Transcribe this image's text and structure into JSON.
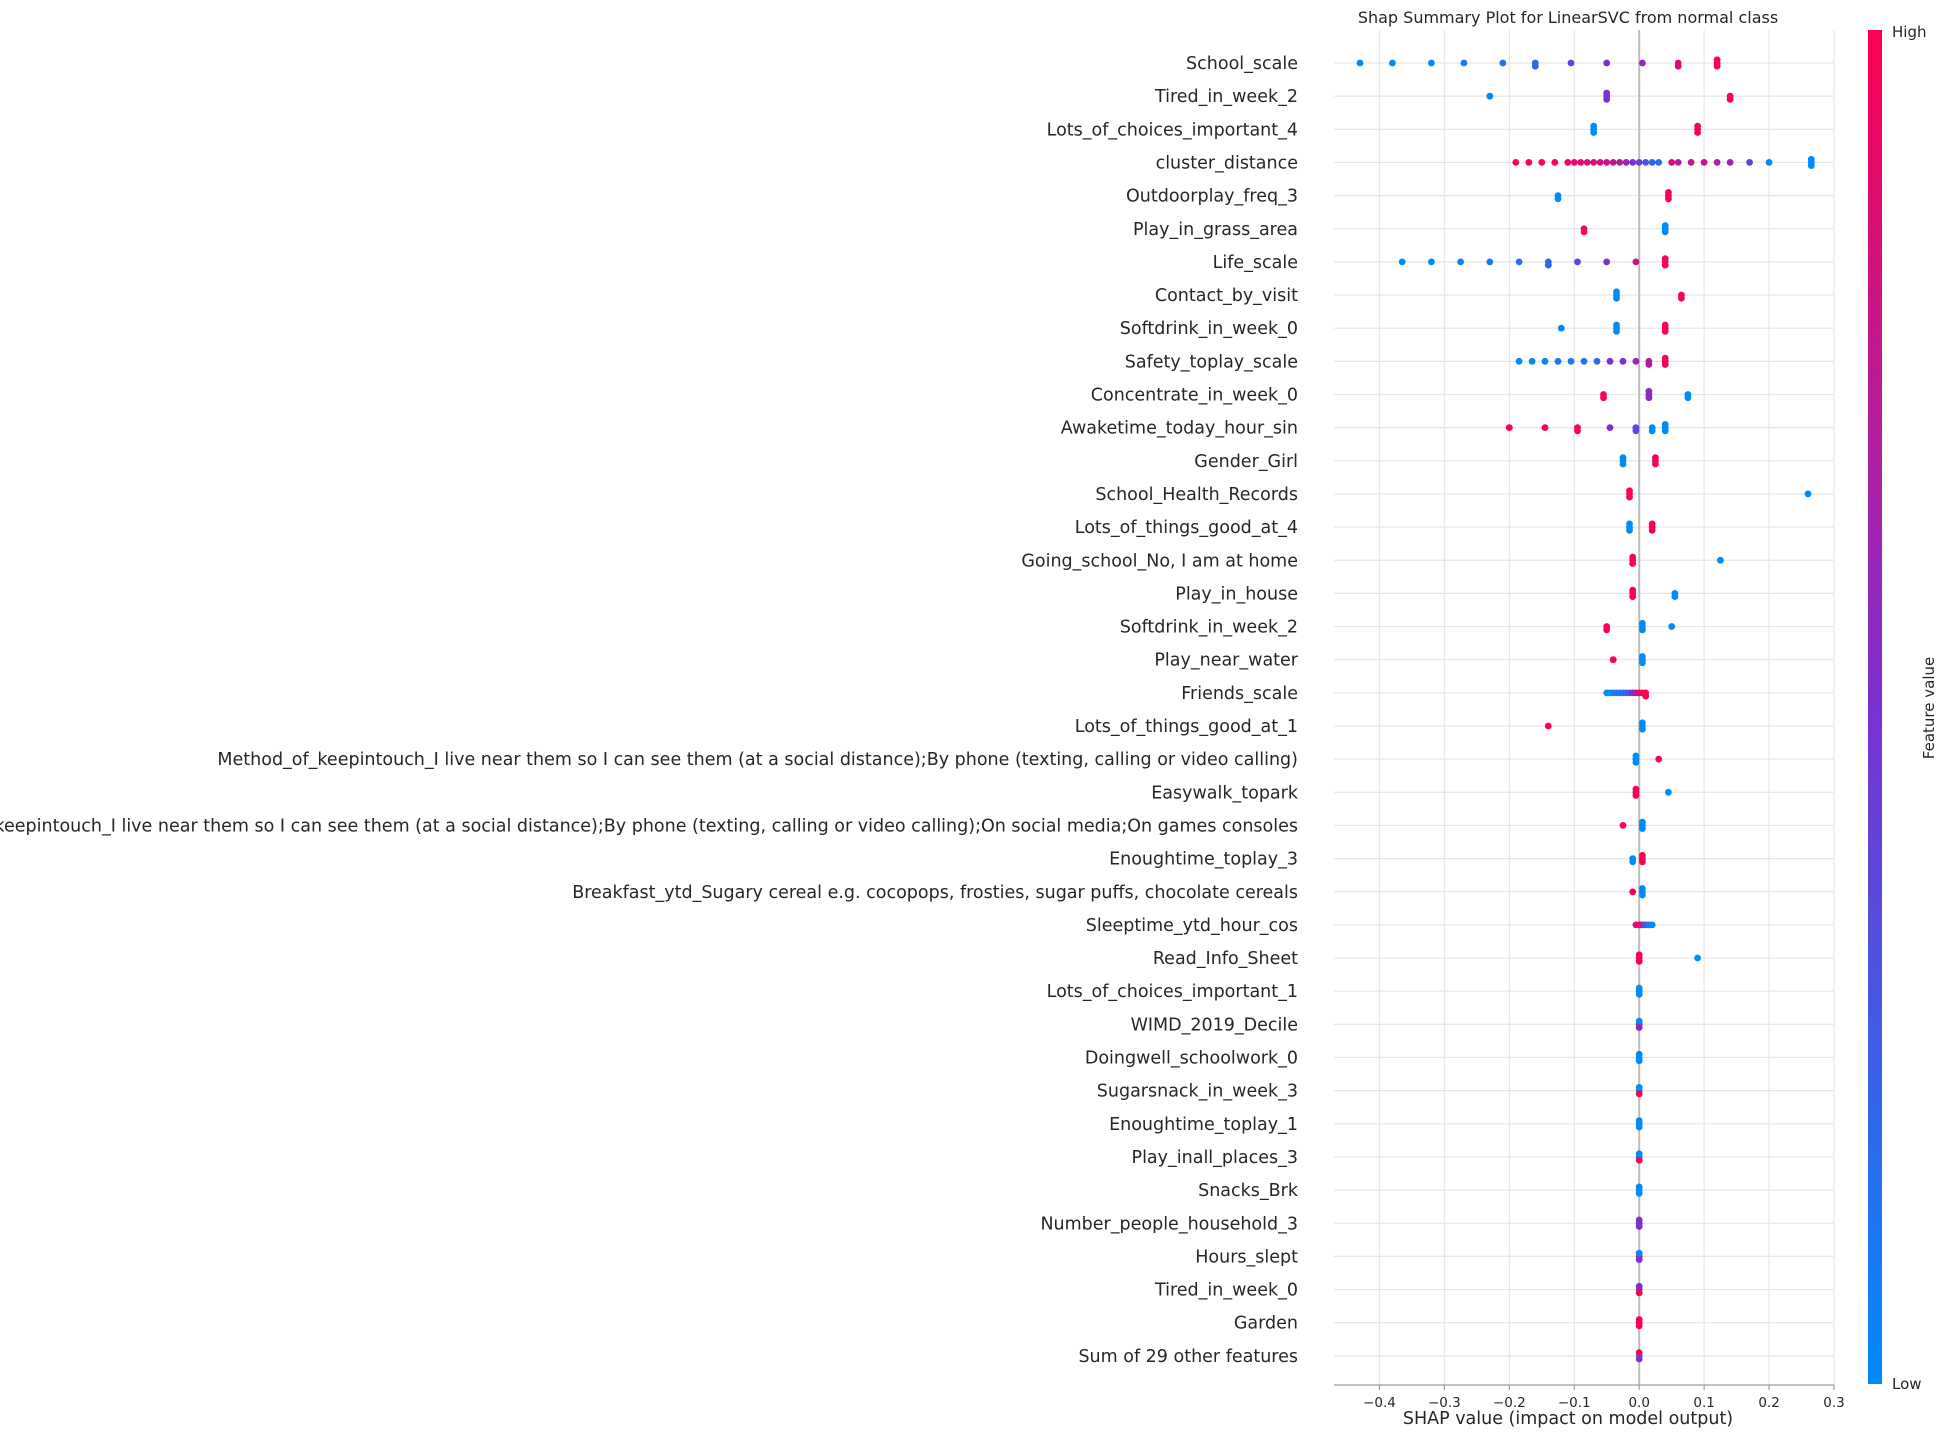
{
  "chart_data": {
    "type": "scatter",
    "title": "Shap Summary Plot for LinearSVC from normal class",
    "xlabel": "SHAP value (impact on model output)",
    "xlim": [
      -0.47,
      0.3
    ],
    "xticks": [
      -0.4,
      -0.3,
      -0.2,
      -0.1,
      0.0,
      0.1,
      0.2,
      0.3
    ],
    "xtick_labels": [
      "−0.4",
      "−0.3",
      "−0.2",
      "−0.1",
      "0.0",
      "0.1",
      "0.2",
      "0.3"
    ],
    "grid": true,
    "colorbar": {
      "label": "Feature value",
      "high": "High",
      "low": "Low",
      "low_color": "#008bfb",
      "high_color": "#ff0051"
    },
    "features": [
      {
        "name": "School_scale",
        "points": [
          [
            -0.43,
            0.0
          ],
          [
            -0.38,
            0.0
          ],
          [
            -0.32,
            0.0
          ],
          [
            -0.27,
            0.1
          ],
          [
            -0.21,
            0.15
          ],
          [
            -0.16,
            0.2
          ],
          [
            -0.16,
            0.2
          ],
          [
            -0.105,
            0.4
          ],
          [
            -0.05,
            0.5
          ],
          [
            0.005,
            0.6
          ],
          [
            0.06,
            0.85
          ],
          [
            0.06,
            0.85
          ],
          [
            0.12,
            1.0
          ],
          [
            0.12,
            1.0
          ],
          [
            0.12,
            1.0
          ]
        ]
      },
      {
        "name": "Tired_in_week_2",
        "points": [
          [
            -0.23,
            0.0
          ],
          [
            -0.05,
            0.5
          ],
          [
            -0.05,
            0.5
          ],
          [
            -0.05,
            0.5
          ],
          [
            0.14,
            1.0
          ],
          [
            0.14,
            1.0
          ]
        ]
      },
      {
        "name": "Lots_of_choices_important_4",
        "points": [
          [
            -0.07,
            0.0
          ],
          [
            -0.07,
            0.0
          ],
          [
            -0.07,
            0.0
          ],
          [
            0.09,
            1.0
          ],
          [
            0.09,
            1.0
          ],
          [
            0.09,
            1.0
          ]
        ]
      },
      {
        "name": "cluster_distance",
        "points": [
          [
            -0.19,
            1.0
          ],
          [
            -0.17,
            1.0
          ],
          [
            -0.15,
            1.0
          ],
          [
            -0.13,
            0.95
          ],
          [
            -0.11,
            0.95
          ],
          [
            -0.1,
            0.9
          ],
          [
            -0.09,
            0.9
          ],
          [
            -0.08,
            0.85
          ],
          [
            -0.07,
            0.85
          ],
          [
            -0.06,
            0.8
          ],
          [
            -0.05,
            0.8
          ],
          [
            -0.04,
            0.75
          ],
          [
            -0.03,
            0.7
          ],
          [
            -0.02,
            0.6
          ],
          [
            -0.01,
            0.5
          ],
          [
            0.0,
            0.4
          ],
          [
            0.01,
            0.3
          ],
          [
            0.02,
            0.2
          ],
          [
            0.03,
            0.15
          ],
          [
            0.05,
            0.85
          ],
          [
            0.06,
            0.7
          ],
          [
            0.08,
            0.8
          ],
          [
            0.1,
            0.75
          ],
          [
            0.12,
            0.7
          ],
          [
            0.14,
            0.6
          ],
          [
            0.17,
            0.4
          ],
          [
            0.2,
            0.0
          ],
          [
            0.265,
            0.0
          ],
          [
            0.265,
            0.0
          ],
          [
            0.265,
            0.0
          ]
        ]
      },
      {
        "name": "Outdoorplay_freq_3",
        "points": [
          [
            -0.125,
            0.0
          ],
          [
            -0.125,
            0.0
          ],
          [
            0.045,
            1.0
          ],
          [
            0.045,
            1.0
          ],
          [
            0.045,
            1.0
          ]
        ]
      },
      {
        "name": "Play_in_grass_area",
        "points": [
          [
            -0.085,
            1.0
          ],
          [
            -0.085,
            1.0
          ],
          [
            0.04,
            0.0
          ],
          [
            0.04,
            0.0
          ],
          [
            0.04,
            0.0
          ]
        ]
      },
      {
        "name": "Life_scale",
        "points": [
          [
            -0.365,
            0.0
          ],
          [
            -0.32,
            0.0
          ],
          [
            -0.275,
            0.05
          ],
          [
            -0.23,
            0.1
          ],
          [
            -0.185,
            0.15
          ],
          [
            -0.14,
            0.2
          ],
          [
            -0.14,
            0.2
          ],
          [
            -0.095,
            0.4
          ],
          [
            -0.05,
            0.5
          ],
          [
            -0.005,
            0.8
          ],
          [
            0.04,
            1.0
          ],
          [
            0.04,
            1.0
          ],
          [
            0.04,
            1.0
          ]
        ]
      },
      {
        "name": "Contact_by_visit",
        "points": [
          [
            -0.035,
            0.0
          ],
          [
            -0.035,
            0.0
          ],
          [
            -0.035,
            0.0
          ],
          [
            0.065,
            1.0
          ],
          [
            0.065,
            1.0
          ]
        ]
      },
      {
        "name": "Softdrink_in_week_0",
        "points": [
          [
            -0.12,
            0.0
          ],
          [
            -0.035,
            0.0
          ],
          [
            -0.035,
            0.0
          ],
          [
            -0.035,
            0.0
          ],
          [
            0.04,
            1.0
          ],
          [
            0.04,
            1.0
          ],
          [
            0.04,
            1.0
          ]
        ]
      },
      {
        "name": "Safety_toplay_scale",
        "points": [
          [
            -0.185,
            0.0
          ],
          [
            -0.165,
            0.0
          ],
          [
            -0.145,
            0.05
          ],
          [
            -0.125,
            0.1
          ],
          [
            -0.105,
            0.1
          ],
          [
            -0.085,
            0.15
          ],
          [
            -0.065,
            0.2
          ],
          [
            -0.045,
            0.5
          ],
          [
            -0.025,
            0.5
          ],
          [
            -0.005,
            0.6
          ],
          [
            0.015,
            0.7
          ],
          [
            0.015,
            0.7
          ],
          [
            0.04,
            1.0
          ],
          [
            0.04,
            1.0
          ],
          [
            0.04,
            1.0
          ]
        ]
      },
      {
        "name": "Concentrate_in_week_0",
        "points": [
          [
            -0.055,
            1.0
          ],
          [
            -0.055,
            1.0
          ],
          [
            0.015,
            0.55
          ],
          [
            0.015,
            0.55
          ],
          [
            0.015,
            0.55
          ],
          [
            0.075,
            0.0
          ],
          [
            0.075,
            0.0
          ]
        ]
      },
      {
        "name": "Awaketime_today_hour_sin",
        "points": [
          [
            -0.2,
            1.0
          ],
          [
            -0.145,
            1.0
          ],
          [
            -0.095,
            1.0
          ],
          [
            -0.095,
            1.0
          ],
          [
            -0.045,
            0.5
          ],
          [
            -0.005,
            0.35
          ],
          [
            -0.005,
            0.35
          ],
          [
            0.02,
            0.0
          ],
          [
            0.02,
            0.0
          ],
          [
            0.04,
            0.0
          ],
          [
            0.04,
            0.0
          ],
          [
            0.04,
            0.0
          ]
        ]
      },
      {
        "name": "Gender_Girl",
        "points": [
          [
            -0.025,
            0.0
          ],
          [
            -0.025,
            0.0
          ],
          [
            -0.025,
            0.0
          ],
          [
            0.025,
            1.0
          ],
          [
            0.025,
            1.0
          ],
          [
            0.025,
            1.0
          ]
        ]
      },
      {
        "name": "School_Health_Records",
        "points": [
          [
            -0.015,
            1.0
          ],
          [
            -0.015,
            1.0
          ],
          [
            -0.015,
            1.0
          ],
          [
            0.26,
            0.0
          ]
        ]
      },
      {
        "name": "Lots_of_things_good_at_4",
        "points": [
          [
            -0.015,
            0.0
          ],
          [
            -0.015,
            0.0
          ],
          [
            -0.015,
            0.0
          ],
          [
            0.02,
            1.0
          ],
          [
            0.02,
            1.0
          ],
          [
            0.02,
            1.0
          ]
        ]
      },
      {
        "name": "Going_school_No, I am at home",
        "points": [
          [
            -0.01,
            1.0
          ],
          [
            -0.01,
            1.0
          ],
          [
            -0.01,
            1.0
          ],
          [
            0.125,
            0.0
          ]
        ]
      },
      {
        "name": "Play_in_house",
        "points": [
          [
            -0.01,
            1.0
          ],
          [
            -0.01,
            1.0
          ],
          [
            -0.01,
            1.0
          ],
          [
            0.055,
            0.0
          ],
          [
            0.055,
            0.0
          ]
        ]
      },
      {
        "name": "Softdrink_in_week_2",
        "points": [
          [
            -0.05,
            1.0
          ],
          [
            -0.05,
            1.0
          ],
          [
            0.005,
            0.0
          ],
          [
            0.005,
            0.0
          ],
          [
            0.005,
            0.0
          ],
          [
            0.05,
            0.0
          ]
        ]
      },
      {
        "name": "Play_near_water",
        "points": [
          [
            -0.04,
            1.0
          ],
          [
            0.005,
            0.0
          ],
          [
            0.005,
            0.0
          ],
          [
            0.005,
            0.0
          ]
        ]
      },
      {
        "name": "Friends_scale",
        "points": [
          [
            -0.05,
            0.0
          ],
          [
            -0.045,
            0.0
          ],
          [
            -0.04,
            0.05
          ],
          [
            -0.035,
            0.1
          ],
          [
            -0.03,
            0.1
          ],
          [
            -0.025,
            0.15
          ],
          [
            -0.02,
            0.2
          ],
          [
            -0.015,
            0.3
          ],
          [
            -0.01,
            0.5
          ],
          [
            -0.005,
            0.7
          ],
          [
            0.0,
            0.85
          ],
          [
            0.005,
            0.95
          ],
          [
            0.01,
            1.0
          ],
          [
            0.01,
            1.0
          ]
        ]
      },
      {
        "name": "Lots_of_things_good_at_1",
        "points": [
          [
            -0.14,
            1.0
          ],
          [
            0.005,
            0.0
          ],
          [
            0.005,
            0.0
          ],
          [
            0.005,
            0.0
          ]
        ]
      },
      {
        "name": "Method_of_keepintouch_I live near them so I can see them (at a social distance);By phone (texting, calling or video calling)",
        "points": [
          [
            -0.005,
            0.0
          ],
          [
            -0.005,
            0.0
          ],
          [
            -0.005,
            0.0
          ],
          [
            0.03,
            1.0
          ]
        ]
      },
      {
        "name": "Easywalk_topark",
        "points": [
          [
            -0.005,
            1.0
          ],
          [
            -0.005,
            1.0
          ],
          [
            -0.005,
            1.0
          ],
          [
            0.045,
            0.0
          ]
        ]
      },
      {
        "name": "Method_of_keepintouch_I live near them so I can see them (at a social distance);By phone (texting, calling or video calling);On social media;On games consoles",
        "points": [
          [
            -0.025,
            1.0
          ],
          [
            0.005,
            0.0
          ],
          [
            0.005,
            0.0
          ],
          [
            0.005,
            0.0
          ]
        ]
      },
      {
        "name": "Enoughtime_toplay_3",
        "points": [
          [
            -0.01,
            0.0
          ],
          [
            -0.01,
            0.0
          ],
          [
            0.005,
            1.0
          ],
          [
            0.005,
            1.0
          ],
          [
            0.005,
            1.0
          ]
        ]
      },
      {
        "name": "Breakfast_ytd_Sugary cereal e.g. cocopops, frosties, sugar puffs, chocolate cereals",
        "points": [
          [
            -0.01,
            1.0
          ],
          [
            0.005,
            0.0
          ],
          [
            0.005,
            0.0
          ],
          [
            0.005,
            0.0
          ]
        ]
      },
      {
        "name": "Sleeptime_ytd_hour_cos",
        "points": [
          [
            -0.005,
            0.8
          ],
          [
            0.0,
            1.0
          ],
          [
            0.003,
            0.9
          ],
          [
            0.006,
            0.6
          ],
          [
            0.01,
            0.3
          ],
          [
            0.015,
            0.1
          ],
          [
            0.02,
            0.0
          ]
        ]
      },
      {
        "name": "Read_Info_Sheet",
        "points": [
          [
            0.0,
            1.0
          ],
          [
            0.0,
            1.0
          ],
          [
            0.0,
            1.0
          ],
          [
            0.09,
            0.0
          ]
        ]
      },
      {
        "name": "Lots_of_choices_important_1",
        "points": [
          [
            0.0,
            0.0
          ],
          [
            0.0,
            0.0
          ],
          [
            0.0,
            0.0
          ]
        ]
      },
      {
        "name": "WIMD_2019_Decile",
        "points": [
          [
            0.0,
            1.0
          ],
          [
            0.0,
            0.5
          ],
          [
            0.0,
            0.0
          ]
        ]
      },
      {
        "name": "Doingwell_schoolwork_0",
        "points": [
          [
            0.0,
            0.0
          ],
          [
            0.0,
            0.0
          ],
          [
            0.0,
            0.0
          ]
        ]
      },
      {
        "name": "Sugarsnack_in_week_3",
        "points": [
          [
            0.0,
            0.0
          ],
          [
            0.0,
            1.0
          ],
          [
            0.0,
            0.0
          ]
        ]
      },
      {
        "name": "Enoughtime_toplay_1",
        "points": [
          [
            0.0,
            0.0
          ],
          [
            0.0,
            0.0
          ],
          [
            0.0,
            0.0
          ]
        ]
      },
      {
        "name": "Play_inall_places_3",
        "points": [
          [
            0.0,
            0.0
          ],
          [
            0.0,
            1.0
          ],
          [
            0.0,
            0.0
          ]
        ]
      },
      {
        "name": "Snacks_Brk",
        "points": [
          [
            0.0,
            0.0
          ],
          [
            0.0,
            0.0
          ],
          [
            0.0,
            0.0
          ]
        ]
      },
      {
        "name": "Number_people_household_3",
        "points": [
          [
            0.0,
            0.5
          ],
          [
            0.0,
            0.5
          ],
          [
            0.0,
            0.5
          ]
        ]
      },
      {
        "name": "Hours_slept",
        "points": [
          [
            0.0,
            1.0
          ],
          [
            0.0,
            0.5
          ],
          [
            0.0,
            0.0
          ]
        ]
      },
      {
        "name": "Tired_in_week_0",
        "points": [
          [
            0.0,
            0.6
          ],
          [
            0.0,
            1.0
          ],
          [
            0.0,
            0.5
          ]
        ]
      },
      {
        "name": "Garden",
        "points": [
          [
            0.0,
            1.0
          ],
          [
            0.0,
            1.0
          ],
          [
            0.0,
            1.0
          ]
        ]
      },
      {
        "name": "Sum of 29 other features",
        "points": [
          [
            0.0,
            0.0
          ],
          [
            0.0,
            0.5
          ],
          [
            0.0,
            1.0
          ]
        ]
      }
    ]
  }
}
